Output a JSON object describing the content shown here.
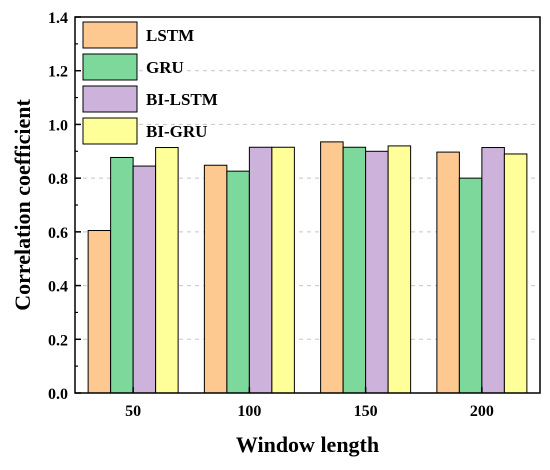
{
  "chart_data": {
    "type": "bar",
    "categories": [
      "50",
      "100",
      "150",
      "200"
    ],
    "series": [
      {
        "name": "LSTM",
        "values": [
          0.605,
          0.848,
          0.935,
          0.897
        ],
        "color": "#FDC991"
      },
      {
        "name": "GRU",
        "values": [
          0.877,
          0.826,
          0.915,
          0.8
        ],
        "color": "#7DD89C"
      },
      {
        "name": "BI-LSTM",
        "values": [
          0.845,
          0.915,
          0.9,
          0.914
        ],
        "color": "#CDB3DB"
      },
      {
        "name": "BI-GRU",
        "values": [
          0.914,
          0.915,
          0.92,
          0.89
        ],
        "color": "#FFFF99"
      }
    ],
    "xlabel": "Window length",
    "ylabel": "Correlation coefficient",
    "ylim": [
      0.0,
      1.4
    ],
    "yticks": [
      "0.0",
      "0.2",
      "0.4",
      "0.6",
      "0.8",
      "1.0",
      "1.2",
      "1.4"
    ],
    "grid": true,
    "legend_position": "top-left"
  }
}
